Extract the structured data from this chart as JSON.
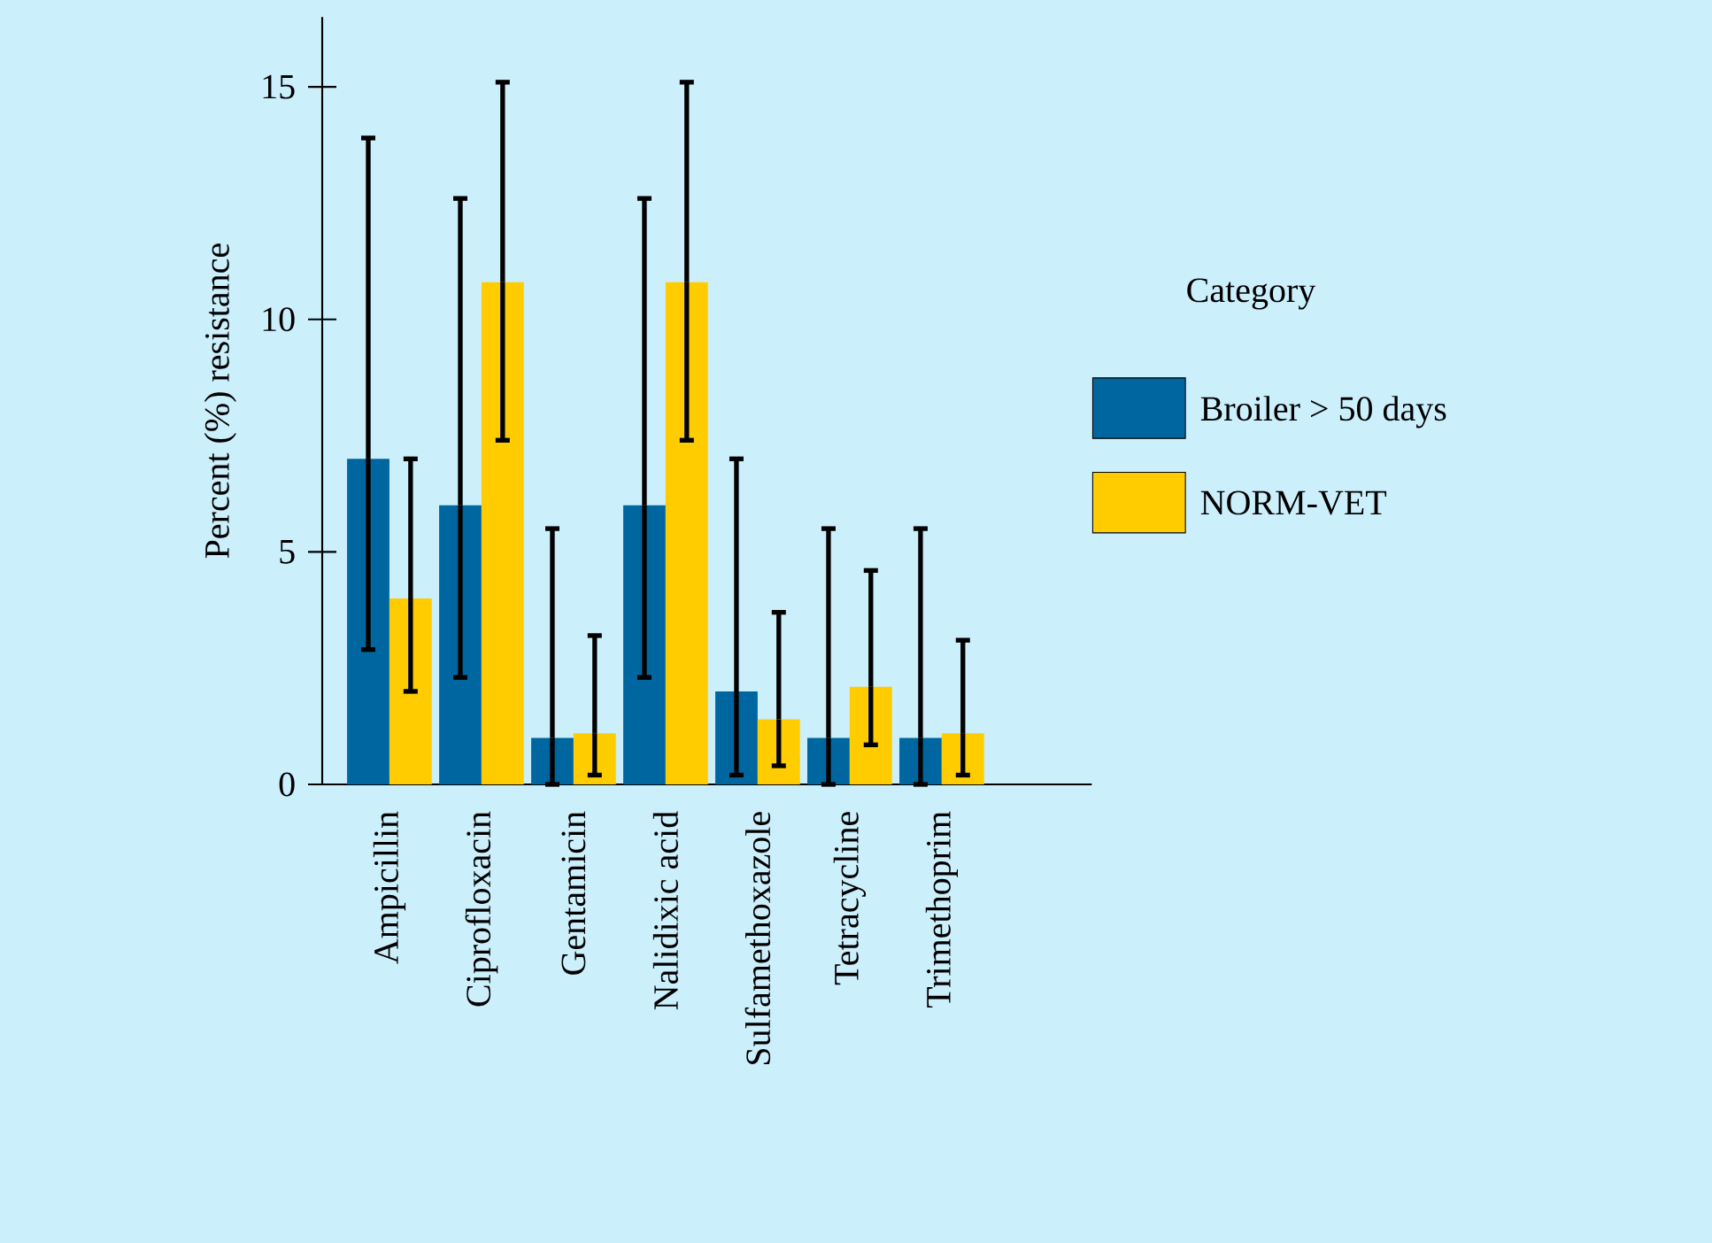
{
  "chart_data": {
    "type": "bar",
    "ylabel": "Percent (%) resistance",
    "legend_title": "Category",
    "categories": [
      "Ampicillin",
      "Ciprofloxacin",
      "Gentamicin",
      "Nalidixic acid",
      "Sulfamethoxazole",
      "Tetracycline",
      "Trimethoprim"
    ],
    "series": [
      {
        "name": "Broiler > 50 days",
        "color": "#0066a0",
        "values": [
          7.0,
          6.0,
          1.0,
          6.0,
          2.0,
          1.0,
          1.0
        ],
        "errors": [
          [
            2.9,
            13.9
          ],
          [
            2.3,
            12.6
          ],
          [
            0,
            5.5
          ],
          [
            2.3,
            12.6
          ],
          [
            0.2,
            7.0
          ],
          [
            0,
            5.5
          ],
          [
            0,
            5.5
          ]
        ]
      },
      {
        "name": "NORM-VET",
        "color": "#ffcc00",
        "values": [
          4.0,
          10.8,
          1.1,
          10.8,
          1.4,
          2.1,
          1.1
        ],
        "errors": [
          [
            2.0,
            7.0
          ],
          [
            7.4,
            15.1
          ],
          [
            0.2,
            3.2
          ],
          [
            7.4,
            15.1
          ],
          [
            0.4,
            3.7
          ],
          [
            0.85,
            4.6
          ],
          [
            0.2,
            3.1
          ]
        ]
      }
    ],
    "ylim": [
      0,
      16.5
    ],
    "yticks": [
      0,
      5,
      10,
      15
    ],
    "grid": false,
    "legend": "right"
  }
}
